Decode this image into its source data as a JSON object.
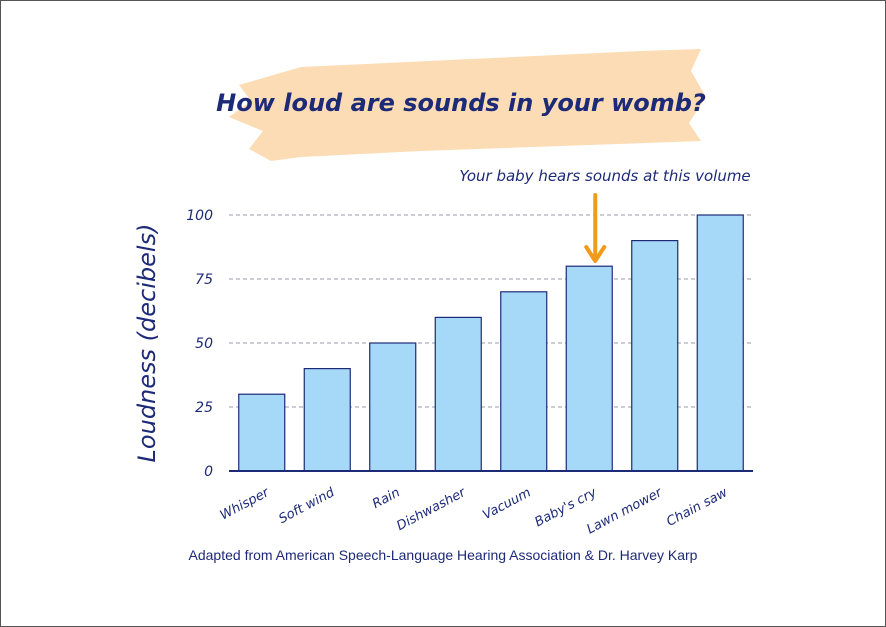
{
  "colors": {
    "bar_fill": "#a6d9f7",
    "bar_stroke": "#1d2a78",
    "text": "#1d2a78",
    "grid": "#9a9aa8",
    "banner": "#fcdcb4",
    "arrow": "#f29a1b"
  },
  "chart_data": {
    "type": "bar",
    "title": "How loud are sounds in your womb?",
    "ylabel": "Loudness (decibels)",
    "xlabel": "",
    "ylim": [
      0,
      100
    ],
    "yticks": [
      0,
      25,
      50,
      75,
      100
    ],
    "grid": "horizontal-dashed",
    "categories": [
      "Whisper",
      "Soft wind",
      "Rain",
      "Dishwasher",
      "Vacuum",
      "Baby's cry",
      "Lawn mower",
      "Chain saw"
    ],
    "values": [
      30,
      40,
      50,
      60,
      70,
      80,
      90,
      100
    ],
    "annotation": {
      "text": "Your baby hears sounds at this volume",
      "target_category": "Baby's cry",
      "icon": "arrow-down-icon"
    },
    "source": "Adapted from American Speech-Language Hearing Association & Dr. Harvey Karp"
  }
}
